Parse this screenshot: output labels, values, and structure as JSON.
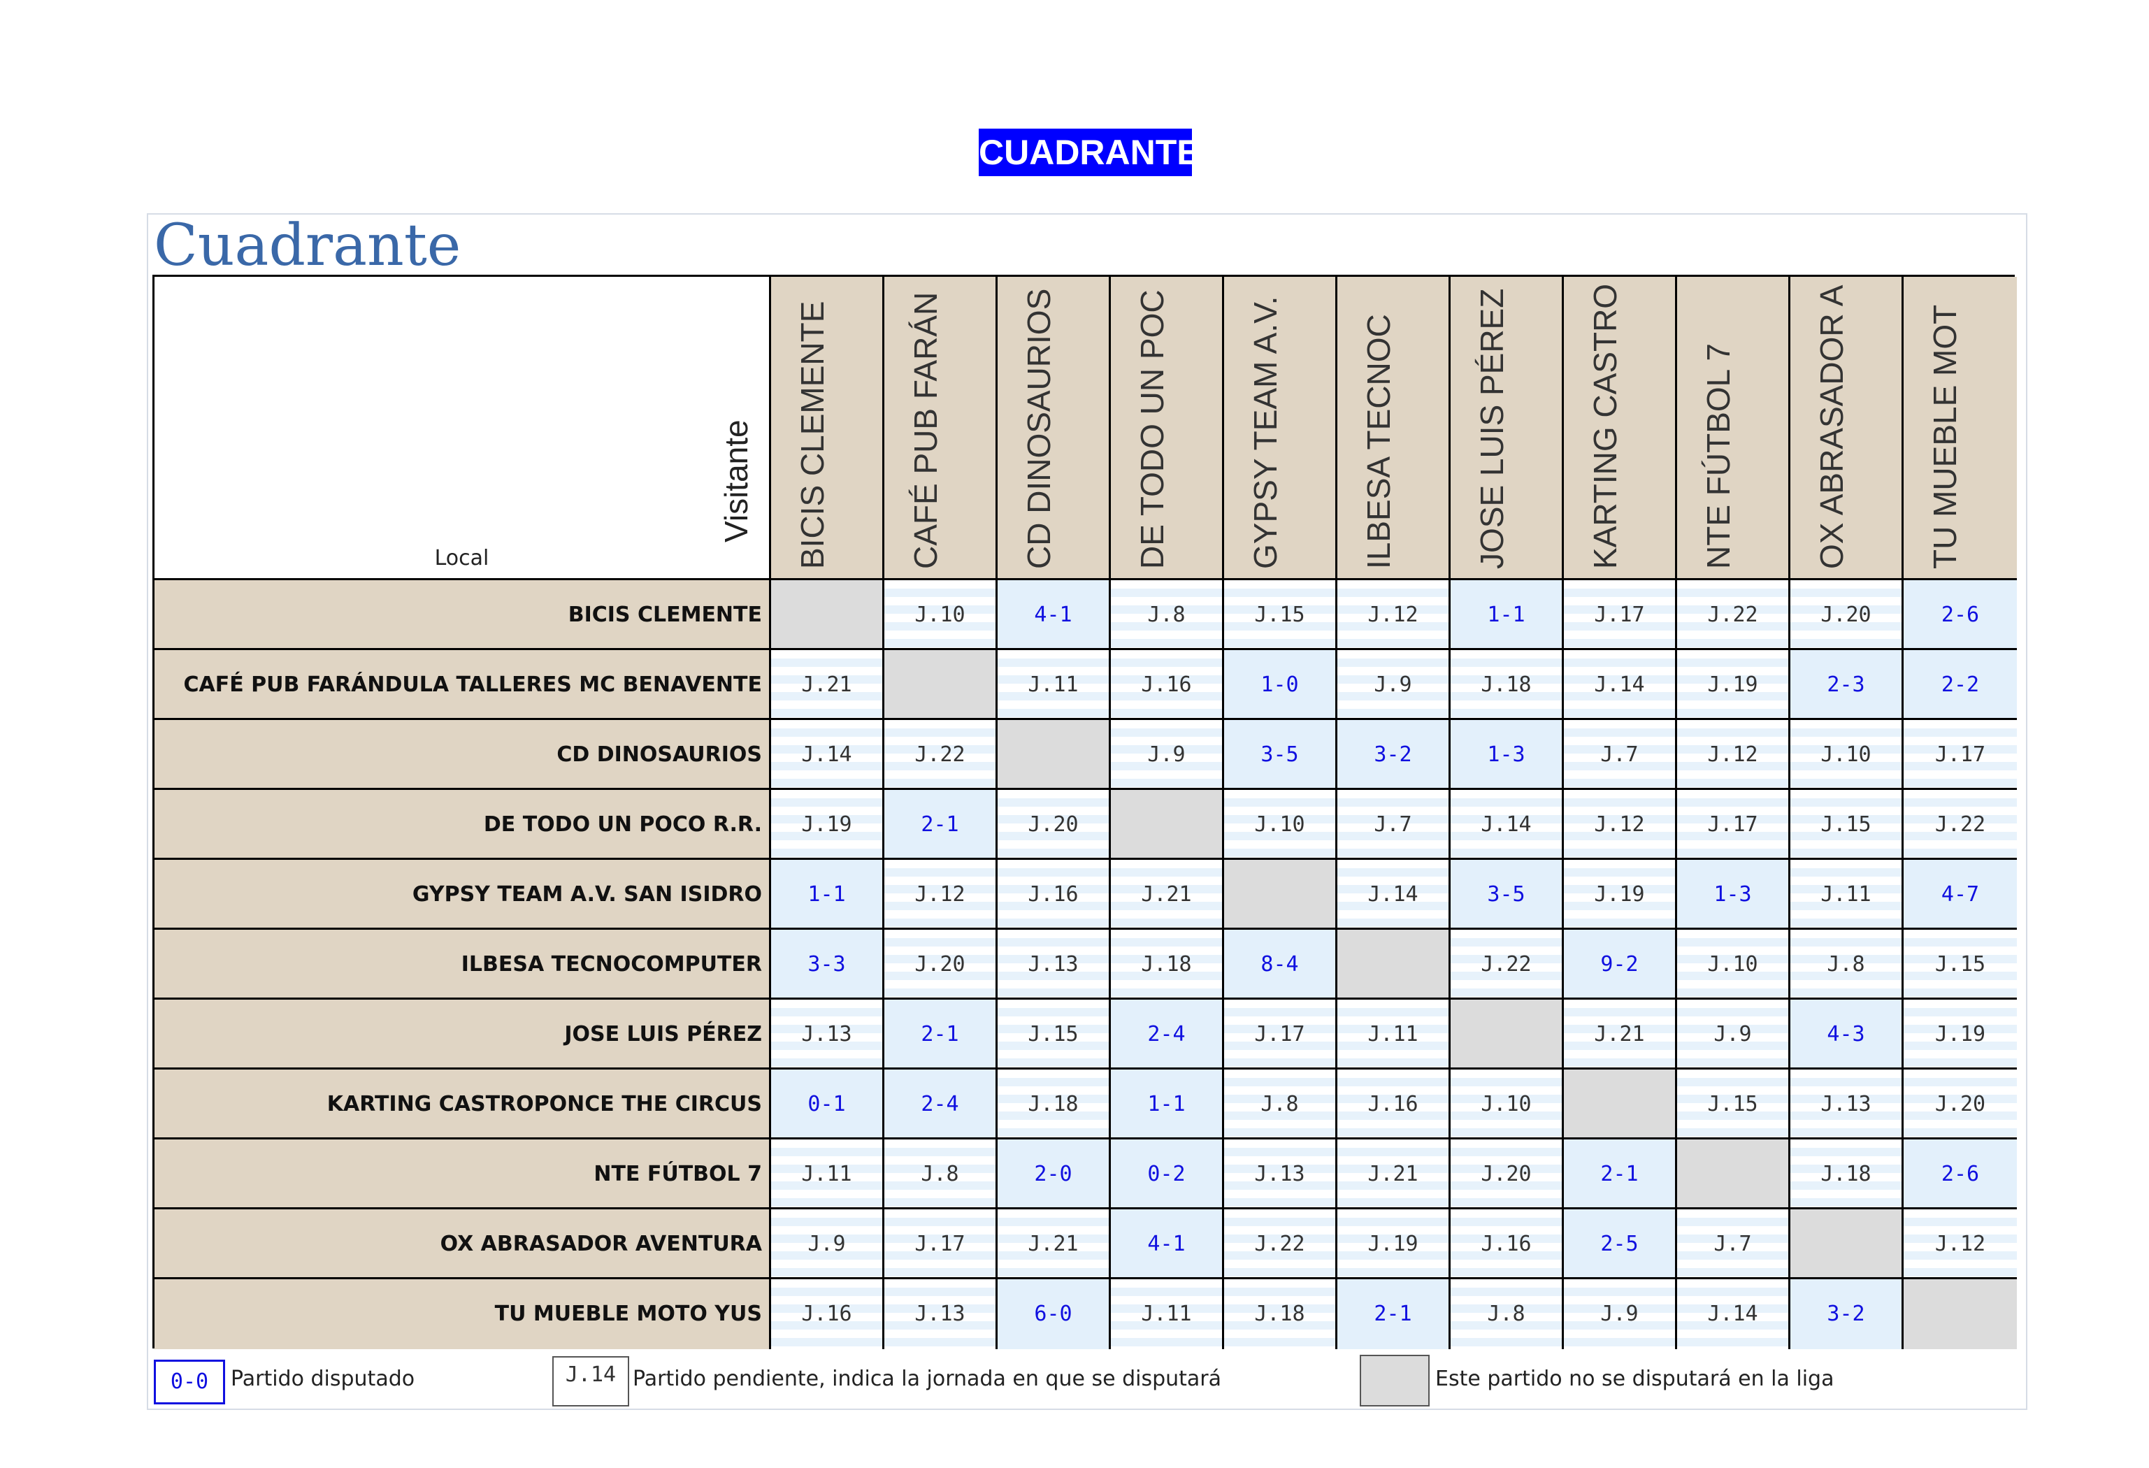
{
  "page_title": "CUADRANTE",
  "heading": "Cuadrante",
  "corner": {
    "visitor_label": "Visitante",
    "home_label": "Local"
  },
  "columns": [
    "BICIS CLEMENTE",
    "CAFÉ PUB FARÁN",
    "CD DINOSAURIOS",
    "DE TODO UN POC",
    "GYPSY TEAM A.V.",
    "ILBESA TECNOC",
    "JOSE LUIS PÉREZ",
    "KARTING CASTRO",
    "NTE FÚTBOL 7",
    "OX ABRASADOR A",
    "TU MUEBLE MOT"
  ],
  "rows": [
    {
      "team": "BICIS CLEMENTE",
      "cells": [
        "",
        "J.10",
        "4-1",
        "J.8",
        "J.15",
        "J.12",
        "1-1",
        "J.17",
        "J.22",
        "J.20",
        "2-6"
      ]
    },
    {
      "team": "CAFÉ PUB FARÁNDULA TALLERES MC BENAVENTE",
      "cells": [
        "J.21",
        "",
        "J.11",
        "J.16",
        "1-0",
        "J.9",
        "J.18",
        "J.14",
        "J.19",
        "2-3",
        "2-2"
      ]
    },
    {
      "team": "CD DINOSAURIOS",
      "cells": [
        "J.14",
        "J.22",
        "",
        "J.9",
        "3-5",
        "3-2",
        "1-3",
        "J.7",
        "J.12",
        "J.10",
        "J.17"
      ]
    },
    {
      "team": "DE TODO UN POCO R.R.",
      "cells": [
        "J.19",
        "2-1",
        "J.20",
        "",
        "J.10",
        "J.7",
        "J.14",
        "J.12",
        "J.17",
        "J.15",
        "J.22"
      ]
    },
    {
      "team": "GYPSY TEAM A.V. SAN ISIDRO",
      "cells": [
        "1-1",
        "J.12",
        "J.16",
        "J.21",
        "",
        "J.14",
        "3-5",
        "J.19",
        "1-3",
        "J.11",
        "4-7"
      ]
    },
    {
      "team": "ILBESA TECNOCOMPUTER",
      "cells": [
        "3-3",
        "J.20",
        "J.13",
        "J.18",
        "8-4",
        "",
        "J.22",
        "9-2",
        "J.10",
        "J.8",
        "J.15"
      ]
    },
    {
      "team": "JOSE LUIS PÉREZ",
      "cells": [
        "J.13",
        "2-1",
        "J.15",
        "2-4",
        "J.17",
        "J.11",
        "",
        "J.21",
        "J.9",
        "4-3",
        "J.19"
      ]
    },
    {
      "team": "KARTING CASTROPONCE THE CIRCUS",
      "cells": [
        "0-1",
        "2-4",
        "J.18",
        "1-1",
        "J.8",
        "J.16",
        "J.10",
        "",
        "J.15",
        "J.13",
        "J.20"
      ]
    },
    {
      "team": "NTE FÚTBOL 7",
      "cells": [
        "J.11",
        "J.8",
        "2-0",
        "0-2",
        "J.13",
        "J.21",
        "J.20",
        "2-1",
        "",
        "J.18",
        "2-6"
      ]
    },
    {
      "team": "OX ABRASADOR AVENTURA",
      "cells": [
        "J.9",
        "J.17",
        "J.21",
        "4-1",
        "J.22",
        "J.19",
        "J.16",
        "2-5",
        "J.7",
        "",
        "J.12"
      ]
    },
    {
      "team": "TU MUEBLE MOTO YUS",
      "cells": [
        "J.16",
        "J.13",
        "6-0",
        "J.11",
        "J.18",
        "2-1",
        "J.8",
        "J.9",
        "J.14",
        "3-2",
        ""
      ]
    }
  ],
  "legend": {
    "played_sample": "0-0",
    "played_label": "Partido disputado",
    "pending_sample": "J.14",
    "pending_label": "Partido pendiente, indica la jornada en que se disputará",
    "not_played_label": "Este partido no se disputará en la liga"
  },
  "colors": {
    "title_bg": "#0000ff",
    "header_bg": "#e0d5c4",
    "played_text": "#1010e0",
    "not_played_bg": "#dcdcdc",
    "heading": "#3a68a8"
  }
}
